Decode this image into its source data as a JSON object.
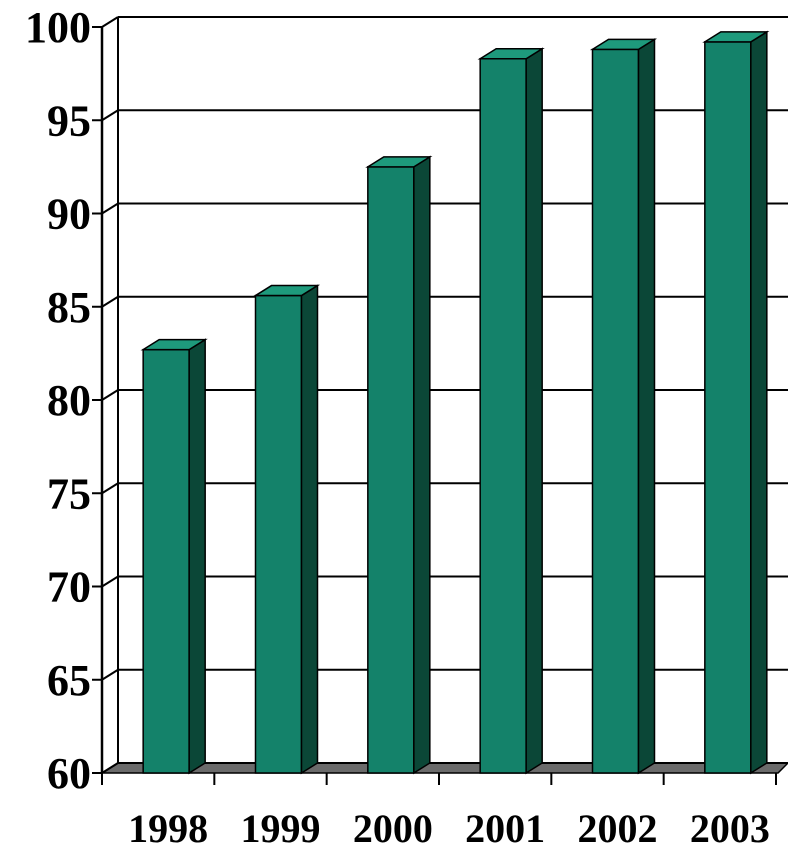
{
  "chart_data": {
    "type": "bar",
    "title": "",
    "xlabel": "",
    "ylabel": "",
    "categories": [
      "1998",
      "1999",
      "2000",
      "2001",
      "2002",
      "2003"
    ],
    "values": [
      82.7,
      85.6,
      92.5,
      98.3,
      98.8,
      99.2
    ],
    "ylim": [
      60,
      100
    ],
    "yticks": [
      "60",
      "65",
      "70",
      "75",
      "80",
      "85",
      "90",
      "95",
      "100"
    ],
    "grid": true,
    "legend": "none",
    "style": "3d-column",
    "colors": {
      "bar_front": "#14826a",
      "bar_side": "#0b4737",
      "bar_top": "#1e9a7c",
      "floor": "#6b6b6b",
      "gridline": "#000000"
    }
  }
}
